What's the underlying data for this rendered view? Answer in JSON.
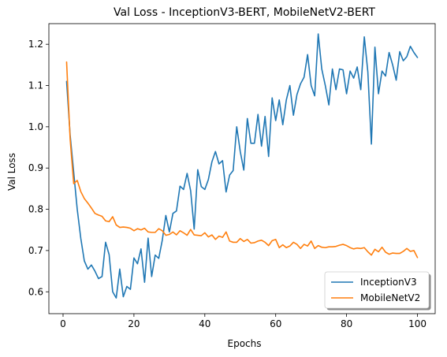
{
  "chart_data": {
    "type": "line",
    "title": "Val Loss - InceptionV3-BERT, MobileNetV2-BERT",
    "xlabel": "Epochs",
    "ylabel": "Val Loss",
    "xlim": [
      -4,
      105
    ],
    "ylim": [
      0.547,
      1.25
    ],
    "xticks": [
      0,
      20,
      40,
      60,
      80,
      100
    ],
    "yticks": [
      0.6,
      0.7,
      0.8,
      0.9,
      1.0,
      1.1,
      1.2
    ],
    "ytick_labels": [
      "0.6",
      "0.7",
      "0.8",
      "0.9",
      "1.0",
      "1.1",
      "1.2"
    ],
    "grid": false,
    "legend_position": "lower-right",
    "x": [
      1,
      2,
      3,
      4,
      5,
      6,
      7,
      8,
      9,
      10,
      11,
      12,
      13,
      14,
      15,
      16,
      17,
      18,
      19,
      20,
      21,
      22,
      23,
      24,
      25,
      26,
      27,
      28,
      29,
      30,
      31,
      32,
      33,
      34,
      35,
      36,
      37,
      38,
      39,
      40,
      41,
      42,
      43,
      44,
      45,
      46,
      47,
      48,
      49,
      50,
      51,
      52,
      53,
      54,
      55,
      56,
      57,
      58,
      59,
      60,
      61,
      62,
      63,
      64,
      65,
      66,
      67,
      68,
      69,
      70,
      71,
      72,
      73,
      74,
      75,
      76,
      77,
      78,
      79,
      80,
      81,
      82,
      83,
      84,
      85,
      86,
      87,
      88,
      89,
      90,
      91,
      92,
      93,
      94,
      95,
      96,
      97,
      98,
      99,
      100
    ],
    "series": [
      {
        "name": "InceptionV3",
        "color": "#1f77b4",
        "values": [
          1.11,
          0.98,
          0.89,
          0.8,
          0.73,
          0.675,
          0.655,
          0.665,
          0.65,
          0.632,
          0.637,
          0.72,
          0.69,
          0.6,
          0.585,
          0.655,
          0.588,
          0.613,
          0.606,
          0.682,
          0.668,
          0.704,
          0.623,
          0.73,
          0.637,
          0.689,
          0.681,
          0.725,
          0.785,
          0.745,
          0.79,
          0.796,
          0.856,
          0.848,
          0.887,
          0.845,
          0.752,
          0.896,
          0.855,
          0.848,
          0.872,
          0.915,
          0.94,
          0.91,
          0.918,
          0.842,
          0.883,
          0.894,
          1.0,
          0.94,
          0.895,
          1.02,
          0.96,
          0.96,
          1.03,
          0.953,
          1.025,
          0.928,
          1.07,
          1.015,
          1.065,
          1.005,
          1.065,
          1.1,
          1.028,
          1.078,
          1.104,
          1.12,
          1.175,
          1.1,
          1.075,
          1.225,
          1.14,
          1.1,
          1.053,
          1.14,
          1.09,
          1.14,
          1.138,
          1.08,
          1.135,
          1.118,
          1.145,
          1.09,
          1.218,
          1.133,
          0.958,
          1.193,
          1.08,
          1.135,
          1.123,
          1.18,
          1.15,
          1.113,
          1.182,
          1.16,
          1.17,
          1.195,
          1.18,
          1.168
        ]
      },
      {
        "name": "MobileNetV2",
        "color": "#ff7f0e",
        "values": [
          1.157,
          0.97,
          0.862,
          0.87,
          0.843,
          0.826,
          0.815,
          0.803,
          0.79,
          0.786,
          0.783,
          0.772,
          0.77,
          0.782,
          0.762,
          0.756,
          0.757,
          0.756,
          0.754,
          0.748,
          0.753,
          0.75,
          0.754,
          0.745,
          0.744,
          0.744,
          0.753,
          0.748,
          0.737,
          0.739,
          0.745,
          0.738,
          0.748,
          0.743,
          0.737,
          0.751,
          0.738,
          0.737,
          0.736,
          0.743,
          0.733,
          0.738,
          0.727,
          0.735,
          0.732,
          0.745,
          0.723,
          0.72,
          0.72,
          0.729,
          0.722,
          0.727,
          0.718,
          0.719,
          0.723,
          0.725,
          0.72,
          0.712,
          0.724,
          0.727,
          0.707,
          0.714,
          0.707,
          0.711,
          0.72,
          0.715,
          0.705,
          0.715,
          0.711,
          0.723,
          0.705,
          0.712,
          0.708,
          0.707,
          0.709,
          0.709,
          0.71,
          0.713,
          0.715,
          0.712,
          0.707,
          0.704,
          0.706,
          0.705,
          0.707,
          0.697,
          0.689,
          0.703,
          0.697,
          0.708,
          0.696,
          0.691,
          0.694,
          0.693,
          0.693,
          0.698,
          0.705,
          0.698,
          0.7,
          0.683
        ]
      }
    ]
  }
}
